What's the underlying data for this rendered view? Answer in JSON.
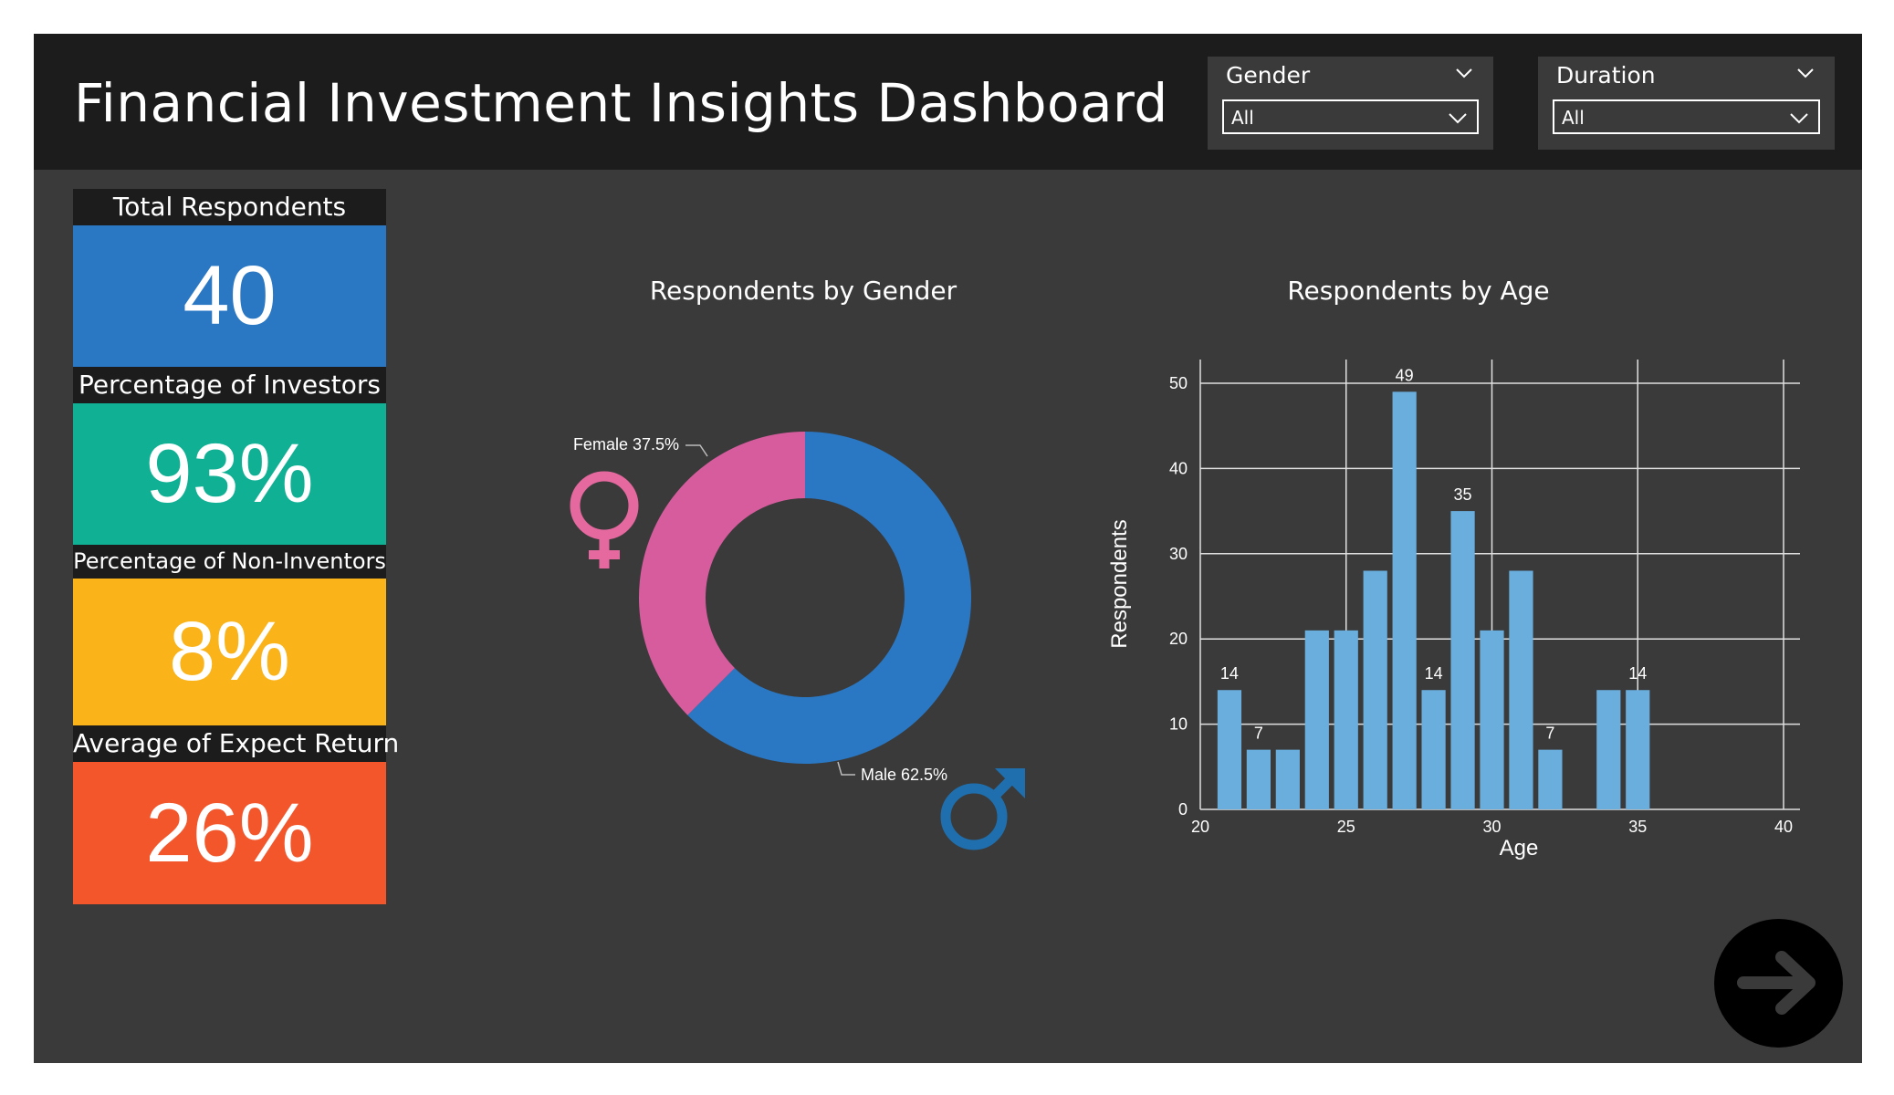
{
  "header": {
    "title": "Financial Investment Insights Dashboard"
  },
  "filters": {
    "gender": {
      "label": "Gender",
      "value": "All"
    },
    "duration": {
      "label": "Duration",
      "value": "All"
    }
  },
  "kpis": {
    "total": {
      "label": "Total Respondents",
      "value": "40",
      "color": "#2a78c4"
    },
    "investors": {
      "label": "Percentage of Investors",
      "value": "93%",
      "color": "#10b094"
    },
    "non_investors": {
      "label": "Percentage of Non-Inventors",
      "value": "8%",
      "color": "#fab318"
    },
    "expect_return": {
      "label": "Average of Expect Return",
      "value": "26%",
      "color": "#f2562a"
    }
  },
  "gender_chart": {
    "title": "Respondents by Gender",
    "female_label": "Female 37.5%",
    "male_label": "Male 62.5%"
  },
  "age_chart": {
    "title": "Respondents by Age",
    "xlabel": "Age",
    "ylabel": "Respondents"
  },
  "chart_data": [
    {
      "type": "pie",
      "title": "Respondents by Gender",
      "donut": true,
      "slices": [
        {
          "name": "Male",
          "value": 62.5,
          "color": "#2a78c4"
        },
        {
          "name": "Female",
          "value": 37.5,
          "color": "#d65c9e"
        }
      ]
    },
    {
      "type": "bar",
      "title": "Respondents by Age",
      "xlabel": "Age",
      "ylabel": "Respondents",
      "x": [
        21,
        22,
        23,
        24,
        25,
        26,
        27,
        28,
        29,
        30,
        31,
        32,
        34,
        35
      ],
      "values": [
        14,
        7,
        7,
        21,
        21,
        28,
        49,
        14,
        35,
        21,
        28,
        7,
        14,
        14
      ],
      "labeled_x": [
        21,
        22,
        27,
        28,
        29,
        32,
        35
      ],
      "xlim": [
        20,
        40
      ],
      "ylim": [
        0,
        50
      ],
      "xticks": [
        20,
        25,
        30,
        35,
        40
      ],
      "yticks": [
        0,
        10,
        20,
        30,
        40,
        50
      ],
      "grid": true,
      "color": "#6aaede"
    }
  ]
}
